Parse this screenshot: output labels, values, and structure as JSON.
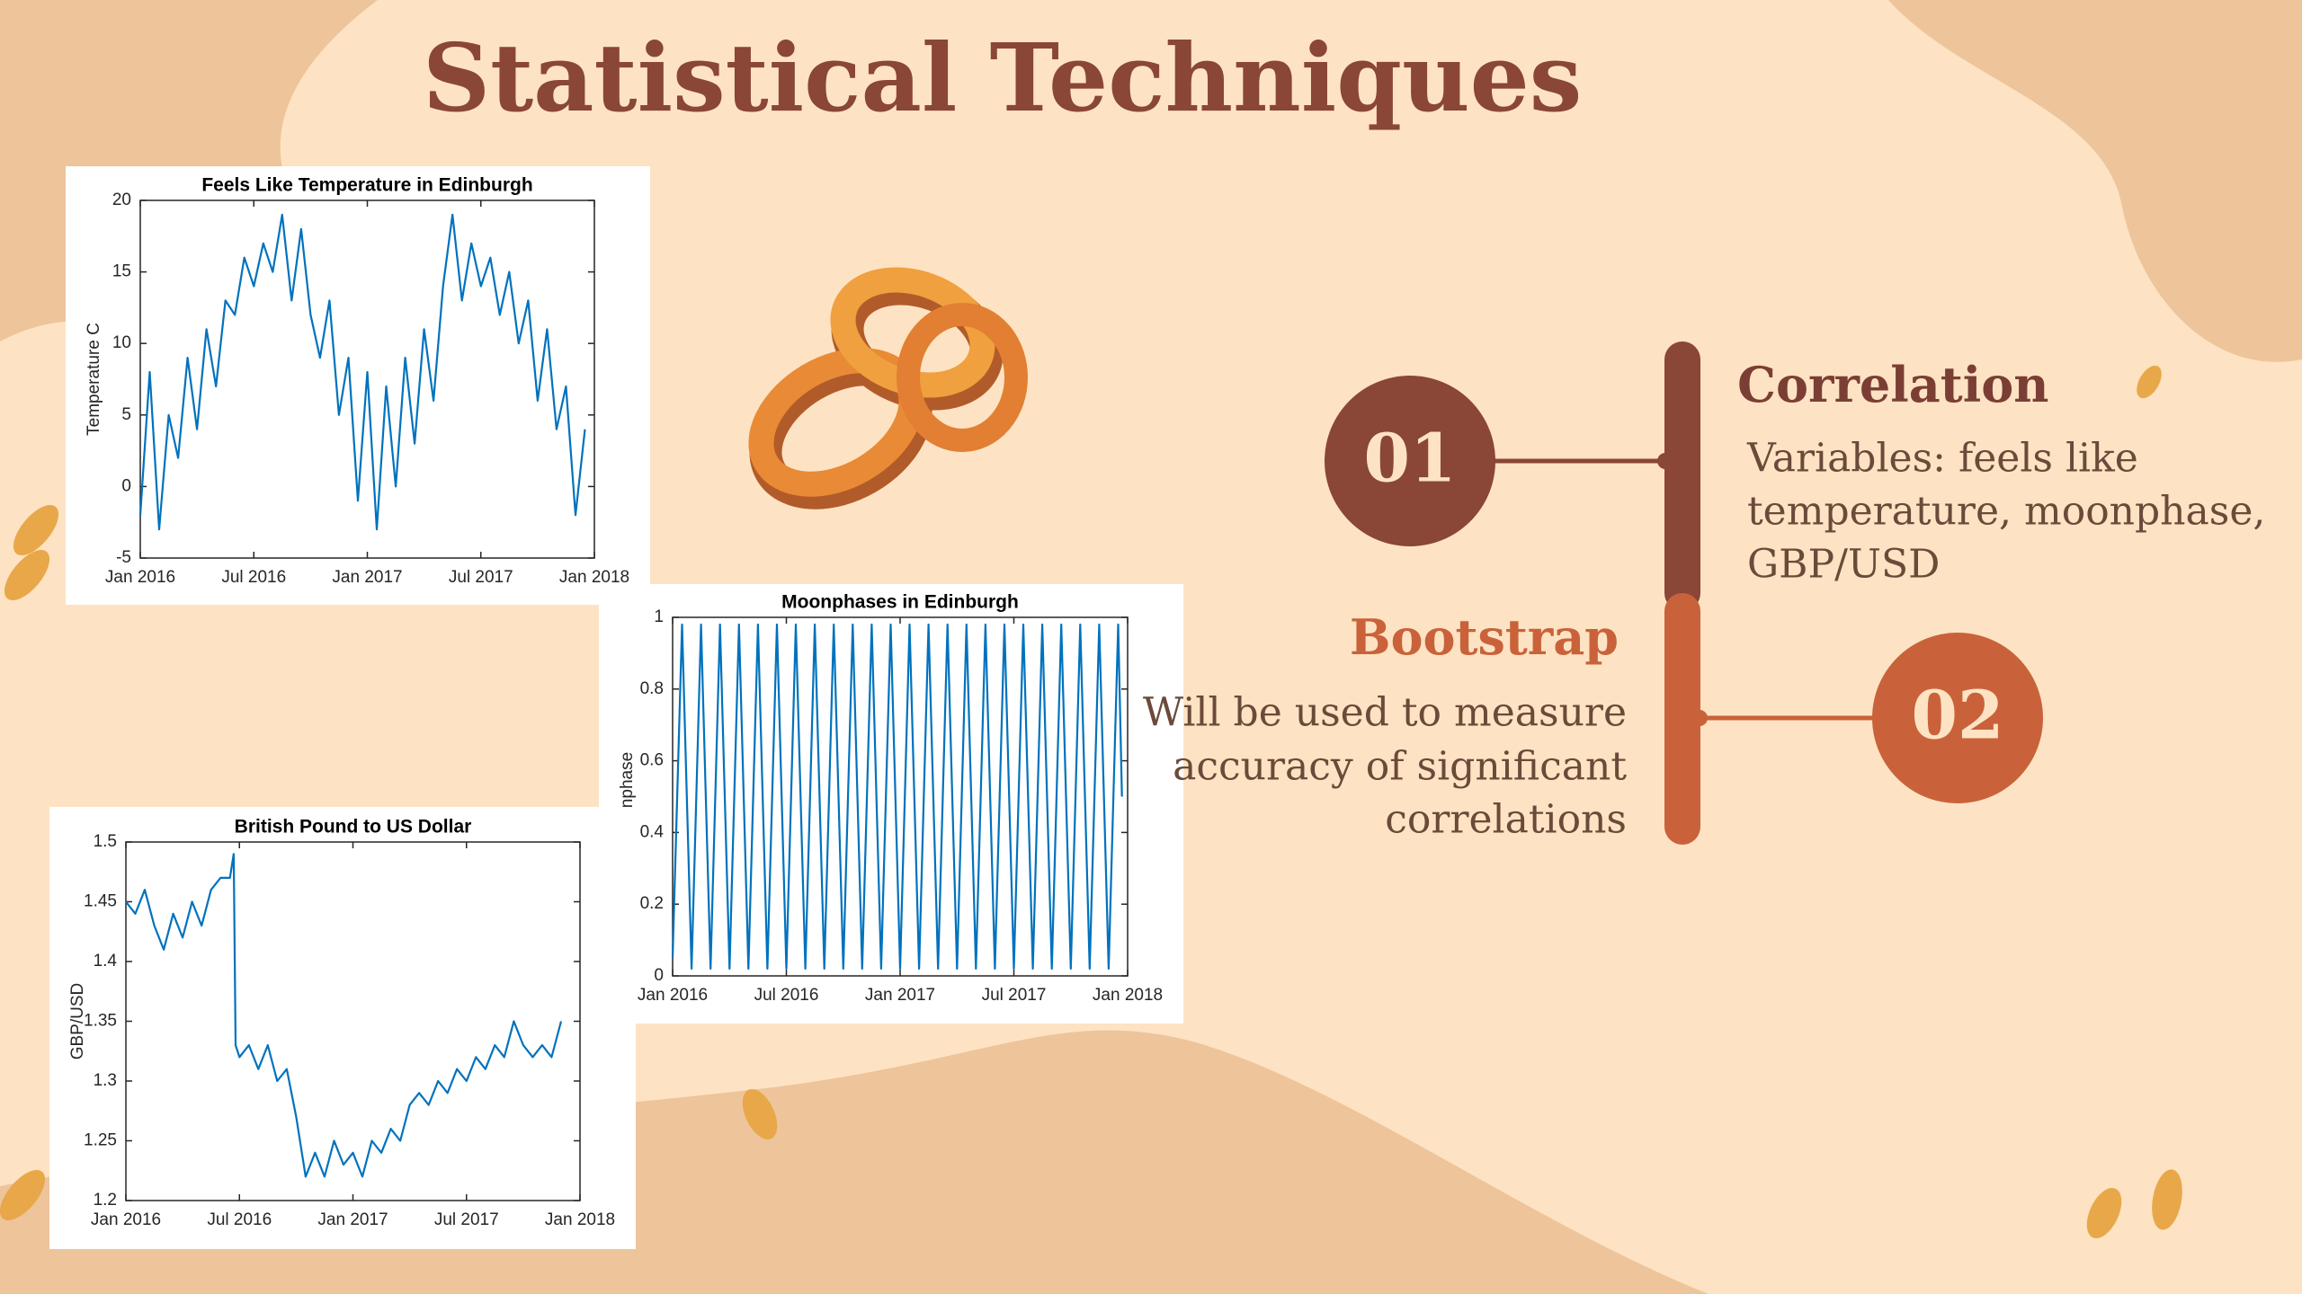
{
  "slide": {
    "title": "Statistical Techniques",
    "steps": [
      {
        "number": "01",
        "heading": "Correlation",
        "lines": [
          "Variables: feels like",
          "temperature, moonphase,",
          "GBP/USD"
        ]
      },
      {
        "number": "02",
        "heading": "Bootstrap",
        "lines": [
          "Will be used to measure",
          "accuracy of significant",
          "correlations"
        ]
      }
    ]
  },
  "chart_data": [
    {
      "type": "line",
      "title": "Feels Like Temperature in Edinburgh",
      "y_label": "Temperature C",
      "color": "#0072bd",
      "x": [
        0,
        0.5,
        1,
        1.5,
        2,
        2.5,
        3,
        3.5,
        4,
        4.5,
        5,
        5.5,
        6,
        6.5,
        7,
        7.5,
        8,
        8.5,
        9,
        9.5,
        10,
        10.5,
        11,
        11.5,
        12,
        12.5,
        13,
        13.5,
        14,
        14.5,
        15,
        15.5,
        16,
        16.5,
        17,
        17.5,
        18,
        18.5,
        19,
        19.5,
        20,
        20.5,
        21,
        21.5,
        22,
        22.5,
        23,
        23.5
      ],
      "values": [
        -2,
        8,
        -3,
        5,
        2,
        9,
        4,
        11,
        7,
        13,
        12,
        16,
        14,
        17,
        15,
        19,
        13,
        18,
        12,
        9,
        13,
        5,
        9,
        -1,
        8,
        -3,
        7,
        0,
        9,
        3,
        11,
        6,
        14,
        19,
        13,
        17,
        14,
        16,
        12,
        15,
        10,
        13,
        6,
        11,
        4,
        7,
        -2,
        4
      ],
      "xlim": [
        0,
        24
      ],
      "xticks": [
        {
          "value": 0,
          "label": "Jan 2016"
        },
        {
          "value": 6,
          "label": "Jul 2016"
        },
        {
          "value": 12,
          "label": "Jan 2017"
        },
        {
          "value": 18,
          "label": "Jul 2017"
        },
        {
          "value": 24,
          "label": "Jan 2018"
        }
      ],
      "ylim": [
        -5,
        20
      ],
      "yticks": [
        -5,
        0,
        5,
        10,
        15,
        20
      ]
    },
    {
      "type": "line",
      "title": "Moonphases in Edinburgh",
      "y_label": "Moonphase",
      "color": "#0072bd",
      "x": [
        0,
        0.5,
        1,
        1.5,
        2,
        2.5,
        3,
        3.5,
        4,
        4.5,
        5,
        5.5,
        6,
        6.5,
        7,
        7.5,
        8,
        8.5,
        9,
        9.5,
        10,
        10.5,
        11,
        11.5,
        12,
        12.5,
        13,
        13.5,
        14,
        14.5,
        15,
        15.5,
        16,
        16.5,
        17,
        17.5,
        18,
        18.5,
        19,
        19.5,
        20,
        20.5,
        21,
        21.5,
        22,
        22.5,
        23,
        23.5,
        23.7
      ],
      "values": [
        0.05,
        0.98,
        0.02,
        0.98,
        0.02,
        0.98,
        0.02,
        0.98,
        0.02,
        0.98,
        0.02,
        0.98,
        0.02,
        0.98,
        0.02,
        0.98,
        0.02,
        0.98,
        0.02,
        0.98,
        0.02,
        0.98,
        0.02,
        0.98,
        0.02,
        0.98,
        0.02,
        0.98,
        0.02,
        0.98,
        0.02,
        0.98,
        0.02,
        0.98,
        0.02,
        0.98,
        0.02,
        0.98,
        0.02,
        0.98,
        0.02,
        0.98,
        0.02,
        0.98,
        0.02,
        0.98,
        0.02,
        0.98,
        0.5
      ],
      "xlim": [
        0,
        24
      ],
      "xticks": [
        {
          "value": 0,
          "label": "Jan 2016"
        },
        {
          "value": 6,
          "label": "Jul 2016"
        },
        {
          "value": 12,
          "label": "Jan 2017"
        },
        {
          "value": 18,
          "label": "Jul 2017"
        },
        {
          "value": 24,
          "label": "Jan 2018"
        }
      ],
      "ylim": [
        0,
        1
      ],
      "yticks": [
        0,
        0.2,
        0.4,
        0.6,
        0.8,
        1
      ]
    },
    {
      "type": "line",
      "title": "British Pound to US Dollar",
      "y_label": "GBP/USD",
      "color": "#0072bd",
      "x": [
        0,
        0.5,
        1,
        1.5,
        2,
        2.5,
        3,
        3.5,
        4,
        4.5,
        5,
        5.5,
        5.7,
        5.8,
        6,
        6.5,
        7,
        7.5,
        8,
        8.5,
        9,
        9.5,
        10,
        10.5,
        11,
        11.5,
        12,
        12.5,
        13,
        13.5,
        14,
        14.5,
        15,
        15.5,
        16,
        16.5,
        17,
        17.5,
        18,
        18.5,
        19,
        19.5,
        20,
        20.5,
        21,
        21.5,
        22,
        22.5,
        23
      ],
      "values": [
        1.45,
        1.44,
        1.46,
        1.43,
        1.41,
        1.44,
        1.42,
        1.45,
        1.43,
        1.46,
        1.47,
        1.47,
        1.49,
        1.33,
        1.32,
        1.33,
        1.31,
        1.33,
        1.3,
        1.31,
        1.27,
        1.22,
        1.24,
        1.22,
        1.25,
        1.23,
        1.24,
        1.22,
        1.25,
        1.24,
        1.26,
        1.25,
        1.28,
        1.29,
        1.28,
        1.3,
        1.29,
        1.31,
        1.3,
        1.32,
        1.31,
        1.33,
        1.32,
        1.35,
        1.33,
        1.32,
        1.33,
        1.32,
        1.35
      ],
      "xlim": [
        0,
        24
      ],
      "xticks": [
        {
          "value": 0,
          "label": "Jan 2016"
        },
        {
          "value": 6,
          "label": "Jul 2016"
        },
        {
          "value": 12,
          "label": "Jan 2017"
        },
        {
          "value": 18,
          "label": "Jul 2017"
        },
        {
          "value": 24,
          "label": "Jan 2018"
        }
      ],
      "ylim": [
        1.2,
        1.5
      ],
      "yticks": [
        1.2,
        1.25,
        1.3,
        1.35,
        1.4,
        1.45,
        1.5
      ]
    }
  ]
}
